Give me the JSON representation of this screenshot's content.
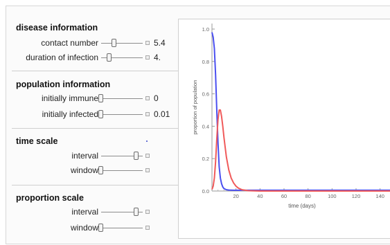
{
  "disease": {
    "title": "disease information",
    "contact_number": {
      "label": "contact number",
      "value": "5.4",
      "level": 0.31
    },
    "duration": {
      "label": "duration of infection",
      "value": "4.",
      "level": 0.2
    }
  },
  "population": {
    "title": "population information",
    "immune": {
      "label": "initially immune",
      "value": "0",
      "level": 0
    },
    "infected": {
      "label": "initially infected",
      "value": "0.01",
      "level": 0
    }
  },
  "time_scale": {
    "title": "time scale",
    "interval": {
      "label": "interval",
      "level": 0.85
    },
    "window": {
      "label": "window",
      "level": 0.0
    }
  },
  "proportion_scale": {
    "title": "proportion scale",
    "interval": {
      "label": "interval",
      "level": 0.85
    },
    "window": {
      "label": "window",
      "level": 0.0
    }
  },
  "colors": {
    "susceptible": "#4a4ff0",
    "infected": "#f05a5a"
  },
  "chart_data": {
    "type": "line",
    "xlabel": "time (days)",
    "ylabel": "proportion of population",
    "xlim": [
      0,
      150
    ],
    "ylim": [
      0,
      1.0
    ],
    "x_ticks": [
      20,
      40,
      60,
      80,
      100,
      120,
      140
    ],
    "y_ticks": [
      "0.0",
      "0.2",
      "0.4",
      "0.6",
      "0.8",
      "1.0"
    ],
    "series": [
      {
        "color": "#4a4ff0",
        "x": [
          0,
          1,
          2,
          3,
          4,
          5,
          6,
          7,
          8,
          9,
          10,
          12,
          14,
          18,
          25,
          40,
          150
        ],
        "y": [
          0.98,
          0.95,
          0.88,
          0.72,
          0.5,
          0.3,
          0.15,
          0.08,
          0.045,
          0.025,
          0.015,
          0.008,
          0.006,
          0.005,
          0.005,
          0.005,
          0.005
        ]
      },
      {
        "color": "#f05a5a",
        "x": [
          0,
          1,
          2,
          3,
          4,
          5,
          6,
          7,
          8,
          9,
          10,
          11,
          12,
          14,
          16,
          18,
          20,
          22,
          25,
          30,
          40,
          150
        ],
        "y": [
          0.01,
          0.03,
          0.08,
          0.18,
          0.32,
          0.44,
          0.5,
          0.5,
          0.46,
          0.4,
          0.33,
          0.27,
          0.21,
          0.13,
          0.08,
          0.05,
          0.03,
          0.018,
          0.008,
          0.002,
          0.0,
          0.0
        ]
      }
    ]
  }
}
